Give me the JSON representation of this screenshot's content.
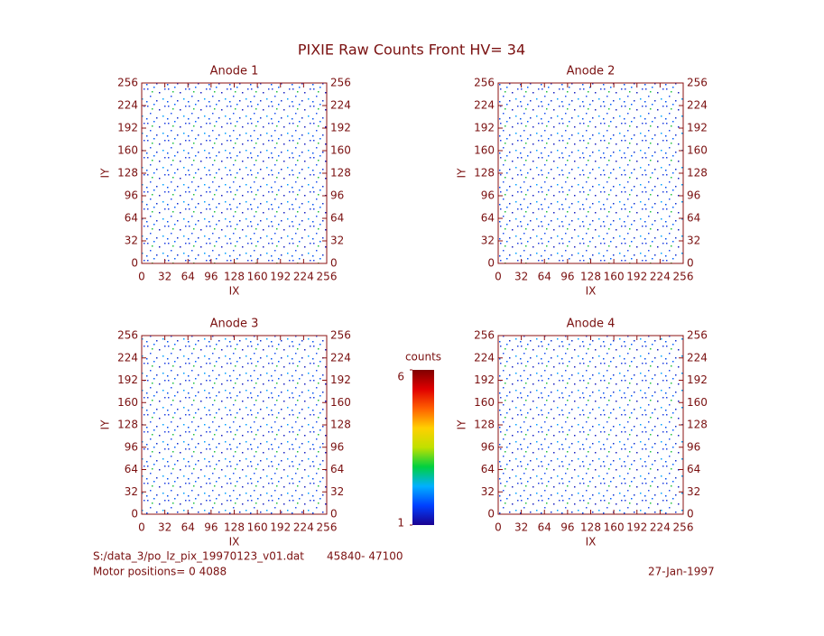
{
  "title": "PIXIE Raw Counts Front HV= 34",
  "chart_data": [
    {
      "type": "heatmap",
      "title": "Anode 1",
      "xlabel": "IX",
      "ylabel": "IY",
      "xlim": [
        0,
        256
      ],
      "ylim": [
        0,
        256
      ],
      "xticks": [
        0,
        32,
        64,
        96,
        128,
        160,
        192,
        224,
        256
      ],
      "yticks": [
        0,
        32,
        64,
        96,
        128,
        160,
        192,
        224,
        256
      ]
    },
    {
      "type": "heatmap",
      "title": "Anode 2",
      "xlabel": "IX",
      "ylabel": "IY",
      "xlim": [
        0,
        256
      ],
      "ylim": [
        0,
        256
      ],
      "xticks": [
        0,
        32,
        64,
        96,
        128,
        160,
        192,
        224,
        256
      ],
      "yticks": [
        0,
        32,
        64,
        96,
        128,
        160,
        192,
        224,
        256
      ]
    },
    {
      "type": "heatmap",
      "title": "Anode 3",
      "xlabel": "IX",
      "ylabel": "IY",
      "xlim": [
        0,
        256
      ],
      "ylim": [
        0,
        256
      ],
      "xticks": [
        0,
        32,
        64,
        96,
        128,
        160,
        192,
        224,
        256
      ],
      "yticks": [
        0,
        32,
        64,
        96,
        128,
        160,
        192,
        224,
        256
      ]
    },
    {
      "type": "heatmap",
      "title": "Anode 4",
      "xlabel": "IX",
      "ylabel": "IY",
      "xlim": [
        0,
        256
      ],
      "ylim": [
        0,
        256
      ],
      "xticks": [
        0,
        32,
        64,
        96,
        128,
        160,
        192,
        224,
        256
      ],
      "yticks": [
        0,
        32,
        64,
        96,
        128,
        160,
        192,
        224,
        256
      ]
    }
  ],
  "colorbar": {
    "title": "counts",
    "lim": [
      1,
      6
    ],
    "ticks": [
      1,
      6
    ],
    "colors": [
      "#1a0090",
      "#0040ff",
      "#00b0ff",
      "#00d040",
      "#c0e000",
      "#ffd000",
      "#ff6000",
      "#e00000",
      "#800000"
    ]
  },
  "footer": {
    "file": "S:/data_3/po_lz_pix_19970123_v01.dat",
    "range": "45840- 47100",
    "motor": "Motor positions= 0 4088",
    "date": "27-Jan-1997"
  }
}
